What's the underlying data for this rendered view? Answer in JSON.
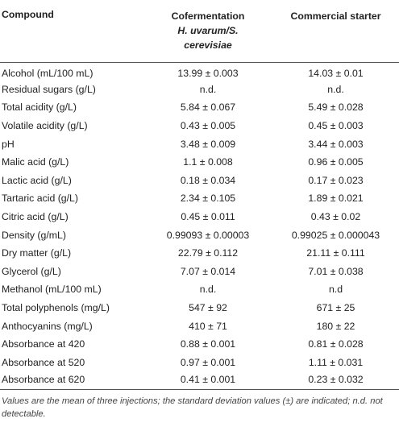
{
  "table": {
    "headers": {
      "compound": "Compound",
      "cofermentation_line1": "Cofermentation",
      "cofermentation_line2": "H. uvarum/S.",
      "cofermentation_line3": "cerevisiae",
      "commercial": "Commercial starter"
    },
    "rows": [
      [
        "Alcohol (mL/100 mL)",
        "13.99 ± 0.003",
        "14.03 ± 0.01"
      ],
      [
        "Residual sugars (g/L)",
        "n.d.",
        "n.d."
      ],
      [
        "Total acidity (g/L)",
        "5.84 ± 0.067",
        "5.49 ± 0.028"
      ],
      [
        "Volatile acidity (g/L)",
        "0.43 ± 0.005",
        "0.45 ± 0.003"
      ],
      [
        "pH",
        "3.48 ± 0.009",
        "3.44 ± 0.003"
      ],
      [
        "Malic acid (g/L)",
        "1.1 ± 0.008",
        "0.96 ± 0.005"
      ],
      [
        "Lactic acid (g/L)",
        "0.18 ± 0.034",
        "0.17 ± 0.023"
      ],
      [
        "Tartaric acid (g/L)",
        "2.34 ± 0.105",
        "1.89 ± 0.021"
      ],
      [
        "Citric acid (g/L)",
        "0.45 ± 0.011",
        "0.43 ± 0.02"
      ],
      [
        "Density (g/mL)",
        "0.99093 ± 0.00003",
        "0.99025 ± 0.000043"
      ],
      [
        "Dry matter (g/L)",
        "22.79 ± 0.112",
        "21.11 ± 0.111"
      ],
      [
        "Glycerol (g/L)",
        "7.07 ± 0.014",
        "7.01 ± 0.038"
      ],
      [
        "Methanol (mL/100 mL)",
        "n.d.",
        "n.d"
      ],
      [
        "Total polyphenols (mg/L)",
        "547 ± 92",
        "671 ± 25"
      ],
      [
        "Anthocyanins (mg/L)",
        "410 ± 71",
        "180 ± 22"
      ],
      [
        "Absorbance at 420",
        "0.88 ± 0.001",
        "0.81 ± 0.028"
      ],
      [
        "Absorbance at 520",
        "0.97 ± 0.001",
        "1.11 ± 0.031"
      ],
      [
        "Absorbance at 620",
        "0.41 ± 0.001",
        "0.23 ± 0.032"
      ]
    ]
  },
  "footnote": "Values are the mean of three injections; the standard deviation values (±) are indicated; n.d. not detectable."
}
